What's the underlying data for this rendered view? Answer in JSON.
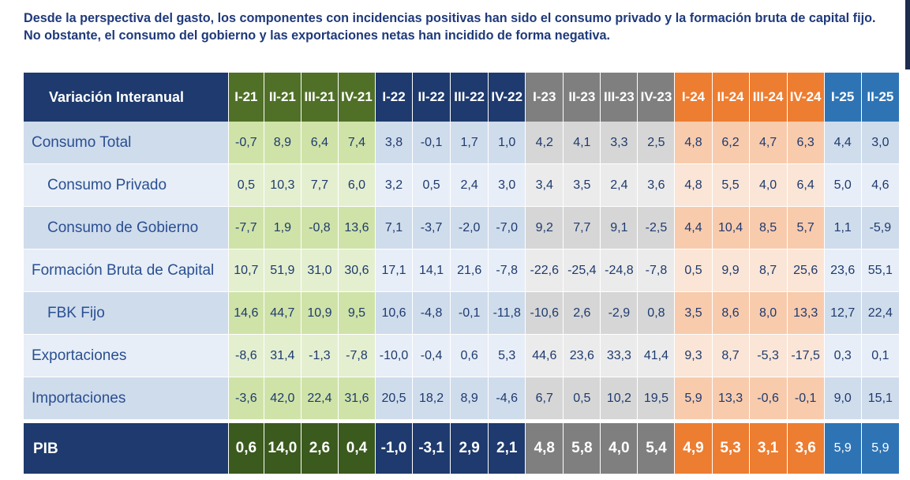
{
  "intro_text": "Desde la perspectiva del gasto, los componentes con incidencias positivas han sido el consumo privado y la formación bruta de capital fijo. No obstante, el consumo del gobierno y las exportaciones netas han incidido de forma negativa.",
  "table": {
    "header_label": "Variación Interanual",
    "periods": [
      "I-21",
      "II-21",
      "III-21",
      "IV-21",
      "I-22",
      "II-22",
      "III-22",
      "IV-22",
      "I-23",
      "II-23",
      "III-23",
      "IV-23",
      "I-24",
      "II-24",
      "III-24",
      "IV-24",
      "I-25",
      "II-25"
    ],
    "rows": [
      {
        "label": "Consumo Total",
        "values": [
          "-0,7",
          "8,9",
          "6,4",
          "7,4",
          "3,8",
          "-0,1",
          "1,7",
          "1,0",
          "4,2",
          "4,1",
          "3,3",
          "2,5",
          "4,8",
          "6,2",
          "4,7",
          "6,3",
          "4,4",
          "3,0"
        ]
      },
      {
        "label": "Consumo Privado",
        "values": [
          "0,5",
          "10,3",
          "7,7",
          "6,0",
          "3,2",
          "0,5",
          "2,4",
          "3,0",
          "3,4",
          "3,5",
          "2,4",
          "3,6",
          "4,8",
          "5,5",
          "4,0",
          "6,4",
          "5,0",
          "4,6"
        ]
      },
      {
        "label": "Consumo de Gobierno",
        "values": [
          "-7,7",
          "1,9",
          "-0,8",
          "13,6",
          "7,1",
          "-3,7",
          "-2,0",
          "-7,0",
          "9,2",
          "7,7",
          "9,1",
          "-2,5",
          "4,4",
          "10,4",
          "8,5",
          "5,7",
          "1,1",
          "-5,9"
        ]
      },
      {
        "label": "Formación Bruta de Capital",
        "values": [
          "10,7",
          "51,9",
          "31,0",
          "30,6",
          "17,1",
          "14,1",
          "21,6",
          "-7,8",
          "-22,6",
          "-25,4",
          "-24,8",
          "-7,8",
          "0,5",
          "9,9",
          "8,7",
          "25,6",
          "23,6",
          "55,1"
        ]
      },
      {
        "label": "FBK Fijo",
        "values": [
          "14,6",
          "44,7",
          "10,9",
          "9,5",
          "10,6",
          "-4,8",
          "-0,1",
          "-11,8",
          "-10,6",
          "2,6",
          "-2,9",
          "0,8",
          "3,5",
          "8,6",
          "8,0",
          "13,3",
          "12,7",
          "22,4"
        ]
      },
      {
        "label": "Exportaciones",
        "values": [
          "-8,6",
          "31,4",
          "-1,3",
          "-7,8",
          "-10,0",
          "-0,4",
          "0,6",
          "5,3",
          "44,6",
          "23,6",
          "33,3",
          "41,4",
          "9,3",
          "8,7",
          "-5,3",
          "-17,5",
          "0,3",
          "0,1"
        ]
      },
      {
        "label": "Importaciones",
        "values": [
          "-3,6",
          "42,0",
          "22,4",
          "31,6",
          "20,5",
          "18,2",
          "8,9",
          "-4,6",
          "6,7",
          "0,5",
          "10,2",
          "19,5",
          "5,9",
          "13,3",
          "-0,6",
          "-0,1",
          "9,0",
          "15,1"
        ]
      }
    ],
    "pib": {
      "label": "PIB",
      "values": [
        "0,6",
        "14,0",
        "2,6",
        "0,4",
        "-1,0",
        "-3,1",
        "2,9",
        "2,1",
        "4,8",
        "5,8",
        "4,0",
        "5,4",
        "4,9",
        "5,3",
        "3,1",
        "3,6",
        "5,9",
        "5,9"
      ]
    }
  }
}
